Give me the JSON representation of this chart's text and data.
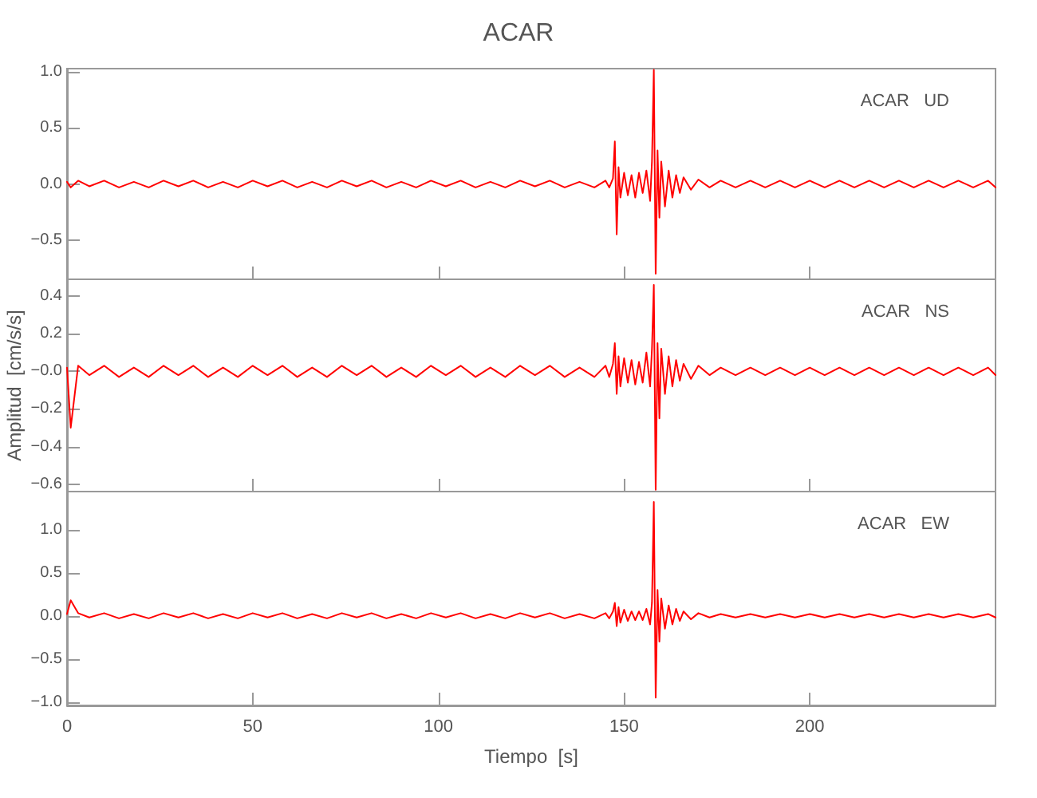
{
  "chart_data": [
    {
      "type": "line",
      "title": "ACAR",
      "annotations": [
        "ACAR   UD"
      ],
      "marker": "none",
      "line_style": "solid",
      "grid": false,
      "tick_labels": "y",
      "x": [
        0,
        1,
        3,
        6,
        10,
        14,
        18,
        22,
        26,
        30,
        34,
        38,
        42,
        46,
        50,
        54,
        58,
        62,
        66,
        70,
        74,
        78,
        82,
        86,
        90,
        94,
        98,
        102,
        106,
        110,
        114,
        118,
        122,
        126,
        130,
        134,
        138,
        142,
        145,
        146,
        147,
        147.5,
        148,
        148.5,
        149,
        150,
        151,
        152,
        153,
        154,
        155,
        156,
        157,
        157.5,
        158,
        158.5,
        159,
        159.5,
        160,
        161,
        162,
        163,
        164,
        165,
        166,
        168,
        170,
        173,
        176,
        180,
        184,
        188,
        192,
        196,
        200,
        204,
        208,
        212,
        216,
        220,
        224,
        228,
        232,
        236,
        240,
        244,
        248,
        250
      ],
      "xlim": [
        0,
        250
      ],
      "xticks": [
        0,
        50,
        100,
        150,
        200
      ],
      "ylim": [
        -0.85,
        1.03
      ],
      "yticks": [
        {
          "value": -0.5,
          "label": "−0.5"
        },
        {
          "value": 0,
          "label": "0.0"
        },
        {
          "value": 0.5,
          "label": "0.5"
        },
        {
          "value": 1,
          "label": "1.0"
        }
      ],
      "series": [
        {
          "color": "#ff0000",
          "values": [
            0.02,
            -0.03,
            0.03,
            -0.02,
            0.03,
            -0.03,
            0.02,
            -0.03,
            0.03,
            -0.02,
            0.03,
            -0.03,
            0.02,
            -0.03,
            0.03,
            -0.02,
            0.03,
            -0.03,
            0.02,
            -0.03,
            0.03,
            -0.02,
            0.03,
            -0.03,
            0.02,
            -0.03,
            0.03,
            -0.02,
            0.03,
            -0.03,
            0.02,
            -0.03,
            0.03,
            -0.02,
            0.03,
            -0.03,
            0.02,
            -0.03,
            0.03,
            -0.03,
            0.05,
            0.38,
            -0.45,
            0.15,
            -0.12,
            0.1,
            -0.1,
            0.08,
            -0.12,
            0.1,
            -0.08,
            0.12,
            -0.15,
            0.2,
            1.02,
            -0.8,
            0.3,
            -0.3,
            0.2,
            -0.2,
            0.12,
            -0.12,
            0.08,
            -0.08,
            0.06,
            -0.05,
            0.04,
            -0.03,
            0.03,
            -0.03,
            0.03,
            -0.03,
            0.03,
            -0.03,
            0.03,
            -0.03,
            0.03,
            -0.03,
            0.03,
            -0.03,
            0.03,
            -0.03,
            0.03,
            -0.03,
            0.03,
            -0.03,
            0.03,
            -0.03
          ]
        }
      ]
    },
    {
      "type": "line",
      "ylabel": "Amplitud  [cm/s/s]",
      "annotations": [
        "ACAR   NS"
      ],
      "marker": "none",
      "line_style": "solid",
      "grid": false,
      "tick_labels": "y",
      "x": [
        0,
        1,
        3,
        6,
        10,
        14,
        18,
        22,
        26,
        30,
        34,
        38,
        42,
        46,
        50,
        54,
        58,
        62,
        66,
        70,
        74,
        78,
        82,
        86,
        90,
        94,
        98,
        102,
        106,
        110,
        114,
        118,
        122,
        126,
        130,
        134,
        138,
        142,
        145,
        146,
        147,
        147.5,
        148,
        148.5,
        149,
        150,
        151,
        152,
        153,
        154,
        155,
        156,
        157,
        157.5,
        158,
        158.5,
        159,
        159.5,
        160,
        161,
        162,
        163,
        164,
        165,
        166,
        168,
        170,
        173,
        176,
        180,
        184,
        188,
        192,
        196,
        200,
        204,
        208,
        212,
        216,
        220,
        224,
        228,
        232,
        236,
        240,
        244,
        248,
        250
      ],
      "xlim": [
        0,
        250
      ],
      "xticks": [
        0,
        50,
        100,
        150,
        200
      ],
      "ylim": [
        -0.64,
        0.49
      ],
      "yticks": [
        {
          "value": -0.6,
          "label": "−0.6"
        },
        {
          "value": -0.4,
          "label": "−0.4"
        },
        {
          "value": -0.2,
          "label": "−0.2"
        },
        {
          "value": 0,
          "label": "−0.0"
        },
        {
          "value": 0.2,
          "label": "0.2"
        },
        {
          "value": 0.4,
          "label": "0.4"
        }
      ],
      "series": [
        {
          "color": "#ff0000",
          "values": [
            0.02,
            -0.3,
            0.03,
            -0.02,
            0.03,
            -0.03,
            0.02,
            -0.03,
            0.03,
            -0.02,
            0.03,
            -0.03,
            0.02,
            -0.03,
            0.03,
            -0.02,
            0.03,
            -0.03,
            0.02,
            -0.03,
            0.03,
            -0.02,
            0.03,
            -0.03,
            0.02,
            -0.03,
            0.03,
            -0.02,
            0.03,
            -0.03,
            0.02,
            -0.03,
            0.03,
            -0.02,
            0.03,
            -0.03,
            0.02,
            -0.03,
            0.03,
            -0.03,
            0.04,
            0.15,
            -0.12,
            0.08,
            -0.08,
            0.07,
            -0.06,
            0.06,
            -0.07,
            0.05,
            -0.06,
            0.1,
            -0.08,
            0.12,
            0.46,
            -0.63,
            0.15,
            -0.25,
            0.12,
            -0.12,
            0.08,
            -0.08,
            0.06,
            -0.05,
            0.04,
            -0.04,
            0.03,
            -0.02,
            0.02,
            -0.02,
            0.02,
            -0.02,
            0.02,
            -0.02,
            0.02,
            -0.02,
            0.02,
            -0.02,
            0.02,
            -0.02,
            0.02,
            -0.02,
            0.02,
            -0.02,
            0.02,
            -0.02,
            0.02,
            -0.02
          ]
        }
      ]
    },
    {
      "type": "line",
      "xlabel": "Tiempo  [s]",
      "annotations": [
        "ACAR   EW"
      ],
      "marker": "none",
      "line_style": "solid",
      "grid": false,
      "x": [
        0,
        1,
        3,
        6,
        10,
        14,
        18,
        22,
        26,
        30,
        34,
        38,
        42,
        46,
        50,
        54,
        58,
        62,
        66,
        70,
        74,
        78,
        82,
        86,
        90,
        94,
        98,
        102,
        106,
        110,
        114,
        118,
        122,
        126,
        130,
        134,
        138,
        142,
        145,
        146,
        147,
        147.5,
        148,
        148.5,
        149,
        150,
        151,
        152,
        153,
        154,
        155,
        156,
        157,
        157.5,
        158,
        158.5,
        159,
        159.5,
        160,
        161,
        162,
        163,
        164,
        165,
        166,
        168,
        170,
        173,
        176,
        180,
        184,
        188,
        192,
        196,
        200,
        204,
        208,
        212,
        216,
        220,
        224,
        228,
        232,
        236,
        240,
        244,
        248,
        250
      ],
      "xlim": [
        0,
        250
      ],
      "xticks": [
        0,
        50,
        100,
        150,
        200
      ],
      "ylim": [
        -1.04,
        1.44
      ],
      "yticks": [
        {
          "value": -1,
          "label": "−1.0"
        },
        {
          "value": -0.5,
          "label": "−0.5"
        },
        {
          "value": 0,
          "label": "0.0"
        },
        {
          "value": 0.5,
          "label": "0.5"
        },
        {
          "value": 1,
          "label": "1.0"
        }
      ],
      "series": [
        {
          "color": "#ff0000",
          "values": [
            0.02,
            0.18,
            0.03,
            -0.02,
            0.03,
            -0.03,
            0.02,
            -0.03,
            0.03,
            -0.02,
            0.03,
            -0.03,
            0.02,
            -0.03,
            0.03,
            -0.02,
            0.03,
            -0.03,
            0.02,
            -0.03,
            0.03,
            -0.02,
            0.03,
            -0.03,
            0.02,
            -0.03,
            0.03,
            -0.02,
            0.03,
            -0.03,
            0.02,
            -0.03,
            0.03,
            -0.02,
            0.03,
            -0.03,
            0.02,
            -0.03,
            0.03,
            -0.03,
            0.05,
            0.15,
            -0.12,
            0.1,
            -0.08,
            0.07,
            -0.06,
            0.05,
            -0.05,
            0.05,
            -0.05,
            0.08,
            -0.1,
            0.15,
            1.32,
            -0.95,
            0.3,
            -0.3,
            0.2,
            -0.15,
            0.12,
            -0.1,
            0.08,
            -0.06,
            0.05,
            -0.04,
            0.03,
            -0.02,
            0.02,
            -0.02,
            0.02,
            -0.02,
            0.02,
            -0.02,
            0.02,
            -0.02,
            0.02,
            -0.02,
            0.02,
            -0.02,
            0.02,
            -0.02,
            0.02,
            -0.02,
            0.02,
            -0.02,
            0.02,
            -0.02
          ]
        }
      ]
    }
  ]
}
